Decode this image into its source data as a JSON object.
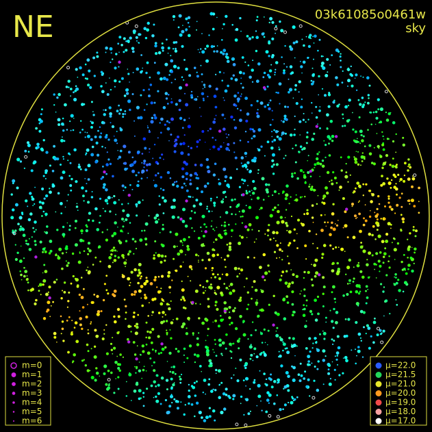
{
  "header": {
    "corner": "NE",
    "frame_id": "03k61085o0461w",
    "frame_type": "sky"
  },
  "legend_magnitude": {
    "entries": [
      {
        "label": "m=0"
      },
      {
        "label": "m=1"
      },
      {
        "label": "m=2"
      },
      {
        "label": "m=3"
      },
      {
        "label": "m=4"
      },
      {
        "label": "m=5"
      },
      {
        "label": "m=6"
      }
    ]
  },
  "legend_mu": {
    "entries": [
      {
        "label": "μ=22.0",
        "color": "#2a5cff"
      },
      {
        "label": "μ=21.5",
        "color": "#22d65a"
      },
      {
        "label": "μ=21.0",
        "color": "#e6e62a"
      },
      {
        "label": "μ=20.0",
        "color": "#ff9a1e"
      },
      {
        "label": "μ=19.0",
        "color": "#f04a4a"
      },
      {
        "label": "μ=18.0",
        "color": "#f6a0a0"
      },
      {
        "label": "μ=17.0",
        "color": "#ffffff"
      }
    ]
  }
}
